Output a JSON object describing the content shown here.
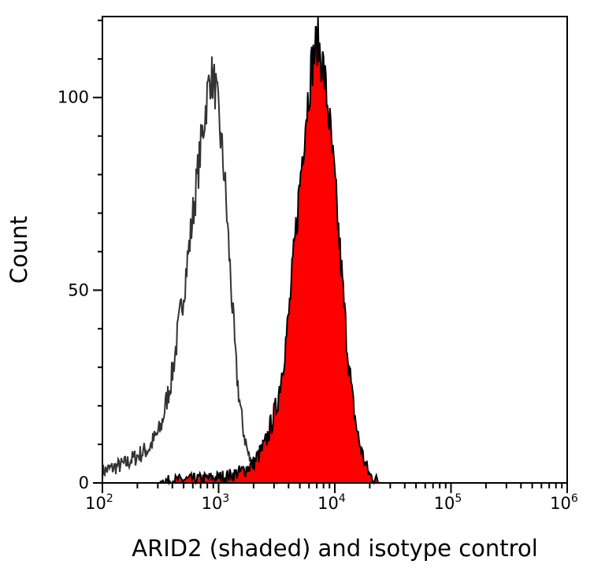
{
  "chart_data": {
    "type": "area",
    "title": "",
    "xlabel": "ARID2 (shaded) and isotype control",
    "ylabel": "Count",
    "x_scale": "log",
    "xlim": [
      100,
      1000000
    ],
    "ylim": [
      0,
      121
    ],
    "x_ticks": [
      {
        "base": "10",
        "exp": "2",
        "value": 100
      },
      {
        "base": "10",
        "exp": "3",
        "value": 1000
      },
      {
        "base": "10",
        "exp": "4",
        "value": 10000
      },
      {
        "base": "10",
        "exp": "5",
        "value": 100000
      },
      {
        "base": "10",
        "exp": "6",
        "value": 1000000
      }
    ],
    "y_ticks": [
      "0",
      "50",
      "100"
    ],
    "y_tick_values": [
      0,
      50,
      100
    ],
    "grid": false,
    "series": [
      {
        "role": "isotype control",
        "style": "outline",
        "color": "#333333",
        "x": [
          100,
          126,
          158,
          200,
          251,
          316,
          398,
          501,
          562,
          631,
          708,
          794,
          851,
          933,
          1000,
          1122,
          1259,
          1413,
          1585,
          1778,
          1995,
          2512,
          3162,
          3981
        ],
        "y": [
          3,
          4,
          5,
          7,
          9,
          14,
          28,
          50,
          62,
          75,
          88,
          100,
          106,
          103,
          95,
          80,
          55,
          30,
          16,
          8,
          3,
          1,
          0.5,
          0
        ]
      },
      {
        "role": "ARID2",
        "style": "shaded",
        "color": "#ff0000",
        "outline_color": "#000000",
        "x": [
          316,
          631,
          1000,
          1259,
          1585,
          1995,
          2512,
          3162,
          3548,
          3981,
          4467,
          5012,
          5623,
          6310,
          7079,
          7943,
          8913,
          10000,
          11220,
          12589,
          14125,
          15849,
          17783,
          19953,
          22387,
          25119
        ],
        "y": [
          0.5,
          1,
          1.5,
          2,
          3,
          5,
          10,
          20,
          30,
          42,
          60,
          78,
          95,
          108,
          115,
          108,
          95,
          78,
          58,
          38,
          22,
          12,
          6,
          2,
          1,
          0
        ]
      }
    ]
  }
}
